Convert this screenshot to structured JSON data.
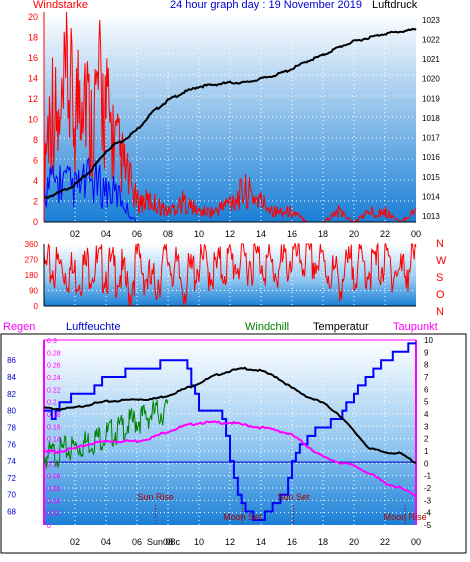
{
  "header": {
    "left_label": "Windstarke",
    "title": "24 hour graph day : 19 November 2019",
    "right_label": "Luftdruck"
  },
  "colors": {
    "wind": "#ff0000",
    "gust": "#0000ff",
    "pressure": "#000000",
    "winddir": "#ff0000",
    "humidity": "#0000ff",
    "windchill": "#008000",
    "temperature": "#000000",
    "dewpoint": "#ff00ff",
    "rain_axis": "#ff00ff",
    "border": "#0000cc",
    "bg_top": "#ffffff",
    "bg_bottom": "#1a7fd6"
  },
  "x_axis": {
    "ticks": [
      "02",
      "04",
      "06",
      "08",
      "10",
      "12",
      "14",
      "16",
      "18",
      "20",
      "22",
      "00"
    ]
  },
  "chart_data": [
    {
      "type": "line",
      "panel": "wind-pressure",
      "x_range_hours": [
        0,
        24
      ],
      "left_axis": {
        "label": "Windstarke",
        "ticks": [
          0,
          2,
          4,
          6,
          8,
          10,
          12,
          14,
          16,
          18,
          20
        ],
        "range": [
          0,
          20.5
        ]
      },
      "right_axis": {
        "label": "Luftdruck",
        "ticks": [
          1013,
          1014,
          1015,
          1016,
          1017,
          1018,
          1019,
          1020,
          1021,
          1022,
          1023
        ],
        "range": [
          1012.7,
          1023.4
        ]
      },
      "series": [
        {
          "name": "Windstarke",
          "x": [
            0,
            0.5,
            1,
            1.5,
            2,
            2.5,
            3,
            3.5,
            4,
            4.5,
            5,
            5.5,
            6,
            7,
            8,
            9,
            10,
            11,
            12,
            13,
            14,
            15,
            16,
            17,
            18,
            19,
            20,
            21,
            22,
            23,
            23.9
          ],
          "values": [
            6,
            12,
            8,
            14,
            10,
            16,
            9,
            13,
            11,
            8,
            6,
            4,
            2,
            2,
            1,
            2,
            1,
            1,
            2,
            3,
            2,
            1,
            1,
            0,
            0,
            1,
            0,
            1,
            1,
            0,
            1
          ]
        },
        {
          "name": "Gust",
          "x": [
            0,
            1,
            2,
            3,
            4,
            5,
            5.5,
            6,
            8,
            12,
            16,
            20,
            23.9
          ],
          "values": [
            4,
            5,
            4,
            5,
            4,
            3,
            1,
            0,
            0,
            0,
            0,
            0,
            0
          ]
        },
        {
          "name": "Luftdruck",
          "x": [
            0,
            1,
            2,
            3,
            4,
            4.6,
            5,
            6,
            7,
            8,
            9,
            10,
            11,
            12,
            13,
            14,
            15,
            16,
            17,
            18,
            19,
            20,
            21,
            22,
            23,
            23.9
          ],
          "values": [
            1013.9,
            1014.2,
            1014.6,
            1015.3,
            1016.3,
            1016.7,
            1016.8,
            1017.4,
            1018.3,
            1018.9,
            1019.3,
            1019.6,
            1019.7,
            1019.8,
            1019.8,
            1020.0,
            1020.2,
            1020.5,
            1020.9,
            1021.2,
            1021.6,
            1021.9,
            1022.1,
            1022.3,
            1022.4,
            1022.5
          ]
        }
      ]
    },
    {
      "type": "line",
      "panel": "wind-direction",
      "x_range_hours": [
        0,
        24
      ],
      "left_axis": {
        "ticks": [
          0,
          90,
          180,
          270,
          360
        ],
        "range": [
          0,
          360
        ]
      },
      "right_axis": {
        "labels": [
          "N",
          "W",
          "S",
          "O",
          "N"
        ]
      },
      "series": [
        {
          "name": "Windrichtung",
          "x": [
            0,
            1,
            2,
            3,
            4,
            5,
            5.5,
            6,
            7,
            8,
            9,
            10,
            11,
            12,
            13,
            14,
            15,
            16,
            17,
            18,
            19,
            20,
            21,
            22,
            23,
            23.9
          ],
          "values": [
            200,
            230,
            180,
            240,
            210,
            190,
            60,
            280,
            100,
            280,
            120,
            250,
            200,
            250,
            260,
            270,
            200,
            280,
            270,
            240,
            150,
            240,
            220,
            250,
            190,
            260
          ]
        }
      ]
    },
    {
      "type": "line",
      "panel": "temperature-humidity",
      "x_range_hours": [
        0,
        24
      ],
      "rain_axis": {
        "label": "Regen",
        "ticks": [
          0,
          0.02,
          0.04,
          0.06,
          0.08,
          0.1,
          0.12,
          0.14,
          0.16,
          0.18,
          0.2,
          0.22,
          0.24,
          0.26,
          0.28,
          0.3
        ]
      },
      "humidity_axis": {
        "label": "Luftfeuchte",
        "ticks": [
          68,
          70,
          72,
          74,
          76,
          78,
          80,
          82,
          84,
          86
        ]
      },
      "temperature_axis": {
        "ticks": [
          -5,
          -4,
          -3,
          -2,
          -1,
          0,
          1,
          2,
          3,
          4,
          5,
          6,
          7,
          8,
          9,
          10
        ],
        "range": [
          -5,
          10
        ]
      },
      "header_labels": {
        "windchill": "Windchill",
        "temperature": "Temperatur",
        "dewpoint": "Taupunkt"
      },
      "zero_line_temp": 0.1,
      "series": [
        {
          "name": "Luftfeuchte",
          "x": [
            0,
            0.5,
            1,
            1.5,
            2,
            3,
            4,
            5,
            5.5,
            6,
            7,
            8,
            9,
            9.5,
            10,
            11,
            11.5,
            12,
            12.5,
            13,
            13.5,
            14,
            15,
            15.5,
            16,
            17,
            18,
            19,
            20,
            21,
            22,
            23,
            23.9
          ],
          "values": [
            80,
            79,
            81,
            81,
            82,
            82,
            84,
            84,
            85,
            85,
            85,
            86,
            86,
            83,
            80,
            80,
            79,
            74,
            70,
            68,
            67,
            67,
            69,
            70,
            74,
            77,
            78,
            79,
            82,
            84,
            86,
            87,
            88
          ]
        },
        {
          "name": "Windchill",
          "x": [
            0,
            1,
            2,
            3,
            4,
            5,
            5.5,
            6,
            7,
            8
          ],
          "values": [
            0.5,
            0.9,
            1.3,
            1.8,
            2.3,
            2.8,
            3.2,
            3.5,
            4.0,
            4.3
          ]
        },
        {
          "name": "Temperatur",
          "x": [
            0,
            1,
            2,
            3,
            4,
            5,
            6,
            7,
            8,
            9,
            10,
            11,
            12,
            13,
            14,
            15,
            16,
            17,
            18,
            19,
            20,
            21,
            22,
            23,
            23.9
          ],
          "values": [
            4.5,
            4.4,
            4.5,
            4.8,
            5.0,
            5.1,
            5.2,
            5.2,
            5.5,
            6.0,
            6.5,
            7.1,
            7.5,
            7.7,
            7.5,
            7.0,
            6.1,
            5.4,
            4.9,
            4.0,
            2.6,
            1.2,
            0.9,
            0.8,
            0.1
          ]
        },
        {
          "name": "Taupunkt",
          "x": [
            0,
            1,
            2,
            3,
            4,
            5,
            6,
            7,
            8,
            9,
            10,
            11,
            12,
            13,
            14,
            15,
            16,
            17,
            18,
            19,
            20,
            21,
            22,
            23,
            23.9
          ],
          "values": [
            0.9,
            1.0,
            1.2,
            1.6,
            1.8,
            1.8,
            1.8,
            2.1,
            2.6,
            3.0,
            3.3,
            3.3,
            3.3,
            3.1,
            2.9,
            2.7,
            2.3,
            1.4,
            0.5,
            0.1,
            -0.2,
            -0.8,
            -1.6,
            -2.0,
            -2.6
          ]
        }
      ],
      "events": [
        {
          "label": "Sun Rise",
          "x": 7.2
        },
        {
          "label": "Moon Set",
          "x": 12.8
        },
        {
          "label": "Sun Set",
          "x": 16.1
        },
        {
          "label": "Moon Rise",
          "x": 23.3
        }
      ],
      "bottom_x_label": "Sun 08c"
    }
  ]
}
